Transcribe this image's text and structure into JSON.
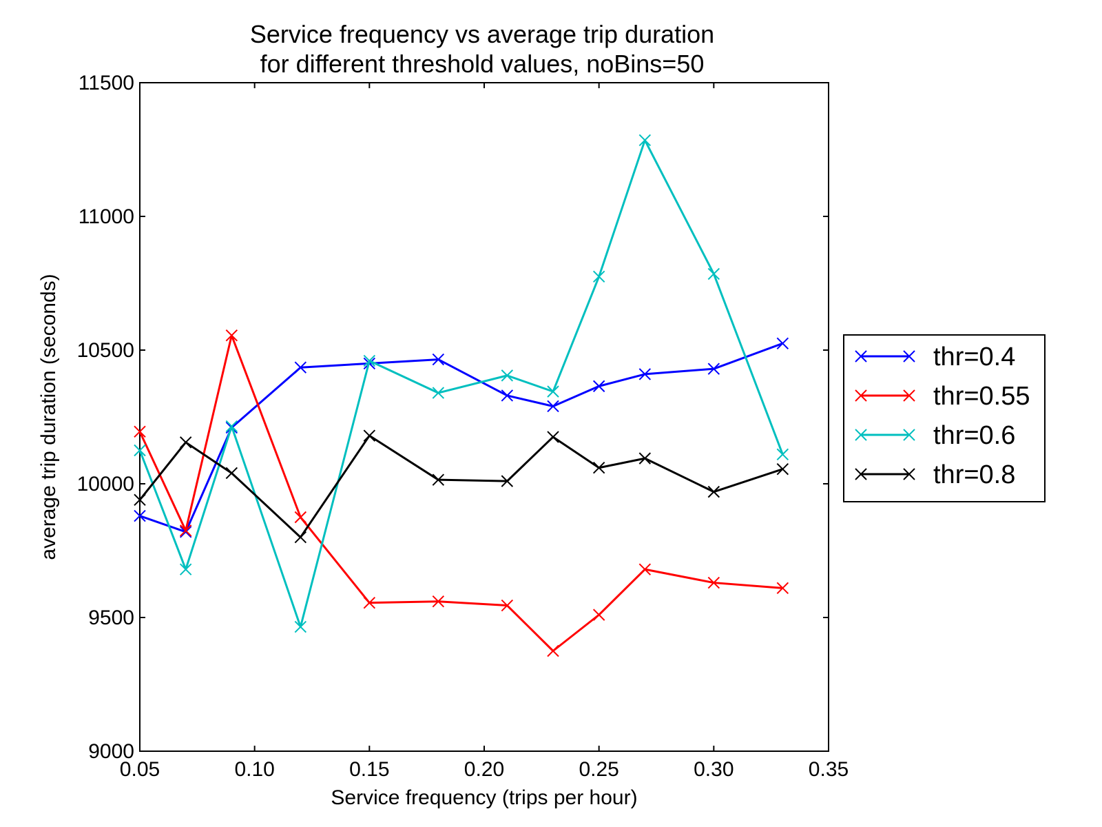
{
  "chart_data": {
    "type": "line",
    "title": [
      "Service frequency vs average trip duration",
      "for different threshold values, noBins=50"
    ],
    "xlabel": "Service frequency (trips per hour)",
    "ylabel": "average trip duration (seconds)",
    "xlim": [
      0.05,
      0.35
    ],
    "ylim": [
      9000,
      11500
    ],
    "xticks": [
      "0.05",
      "0.10",
      "0.15",
      "0.20",
      "0.25",
      "0.30",
      "0.35"
    ],
    "yticks": [
      "9000",
      "9500",
      "10000",
      "10500",
      "11000",
      "11500"
    ],
    "grid": false,
    "legend_position": "outside-right",
    "marker": "x",
    "x": [
      0.05,
      0.07,
      0.09,
      0.12,
      0.15,
      0.18,
      0.21,
      0.23,
      0.25,
      0.27,
      0.3,
      0.33
    ],
    "series": [
      {
        "name": "thr=0.4",
        "color": "#0000ff",
        "values": [
          9880,
          9820,
          10210,
          10435,
          10450,
          10465,
          10330,
          10290,
          10365,
          10410,
          10430,
          10525
        ]
      },
      {
        "name": "thr=0.55",
        "color": "#ff0000",
        "values": [
          10195,
          9825,
          10555,
          9875,
          9555,
          9560,
          9545,
          9375,
          9510,
          9680,
          9630,
          9610
        ]
      },
      {
        "name": "thr=0.6",
        "color": "#00bfbf",
        "values": [
          10125,
          9680,
          10215,
          9465,
          10460,
          10340,
          10405,
          10345,
          10775,
          11285,
          10785,
          10110
        ]
      },
      {
        "name": "thr=0.8",
        "color": "#000000",
        "values": [
          9940,
          10155,
          10040,
          9800,
          10180,
          10015,
          10010,
          10175,
          10060,
          10095,
          9970,
          10055
        ]
      }
    ]
  }
}
